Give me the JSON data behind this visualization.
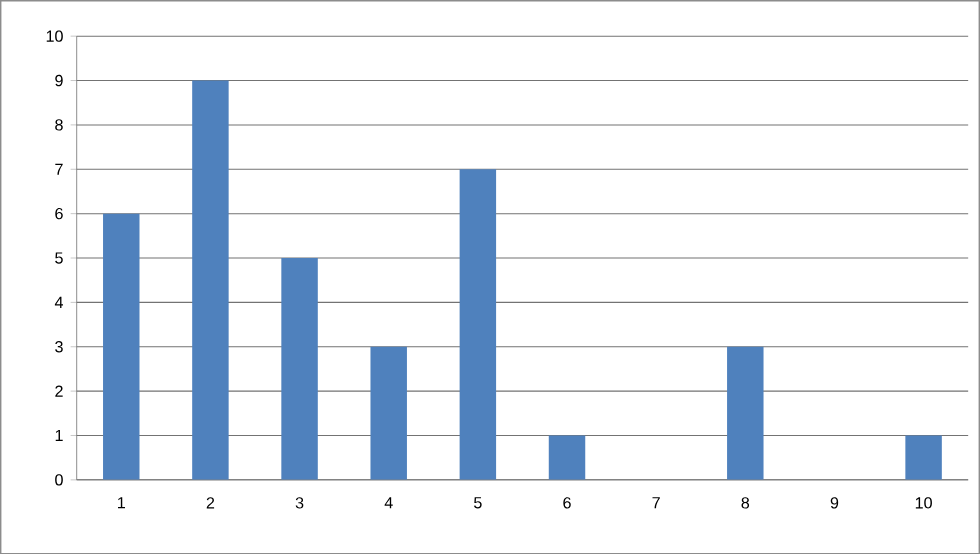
{
  "chart_data": {
    "type": "bar",
    "categories": [
      "1",
      "2",
      "3",
      "4",
      "5",
      "6",
      "7",
      "8",
      "9",
      "10"
    ],
    "values": [
      6,
      9,
      5,
      3,
      7,
      1,
      0,
      3,
      0,
      1
    ],
    "color": "#4f81bd",
    "ylim": [
      0,
      10
    ],
    "yticks": [
      0,
      1,
      2,
      3,
      4,
      5,
      6,
      7,
      8,
      9,
      10
    ],
    "grid": "y"
  }
}
